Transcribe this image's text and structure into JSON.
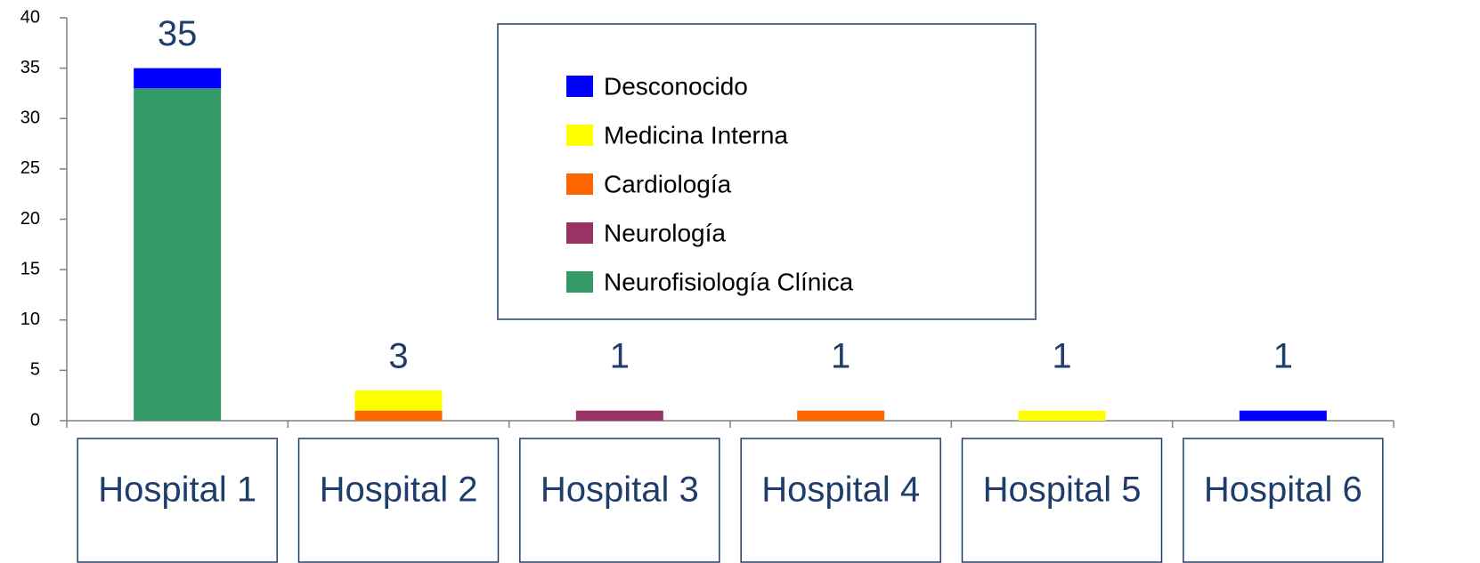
{
  "chart_data": {
    "type": "stacked_bar",
    "categories": [
      "Hospital 1",
      "Hospital 2",
      "Hospital 3",
      "Hospital 4",
      "Hospital 5",
      "Hospital 6"
    ],
    "series": [
      {
        "name": "Neurofisiología Clínica",
        "color": "#339966",
        "values": [
          33,
          0,
          0,
          0,
          0,
          0
        ]
      },
      {
        "name": "Neurología",
        "color": "#993366",
        "values": [
          0,
          0,
          1,
          0,
          0,
          0
        ]
      },
      {
        "name": "Cardiología",
        "color": "#ff6600",
        "values": [
          0,
          1,
          0,
          1,
          0,
          0
        ]
      },
      {
        "name": "Medicina Interna",
        "color": "#ffff00",
        "values": [
          0,
          2,
          0,
          0,
          1,
          0
        ]
      },
      {
        "name": "Desconocido",
        "color": "#0000ff",
        "values": [
          2,
          0,
          0,
          0,
          0,
          1
        ]
      }
    ],
    "totals": [
      35,
      3,
      1,
      1,
      1,
      1
    ],
    "ylim": [
      0,
      40
    ],
    "yticks": [
      0,
      5,
      10,
      15,
      20,
      25,
      30,
      35,
      40
    ],
    "legend": "top-center"
  }
}
